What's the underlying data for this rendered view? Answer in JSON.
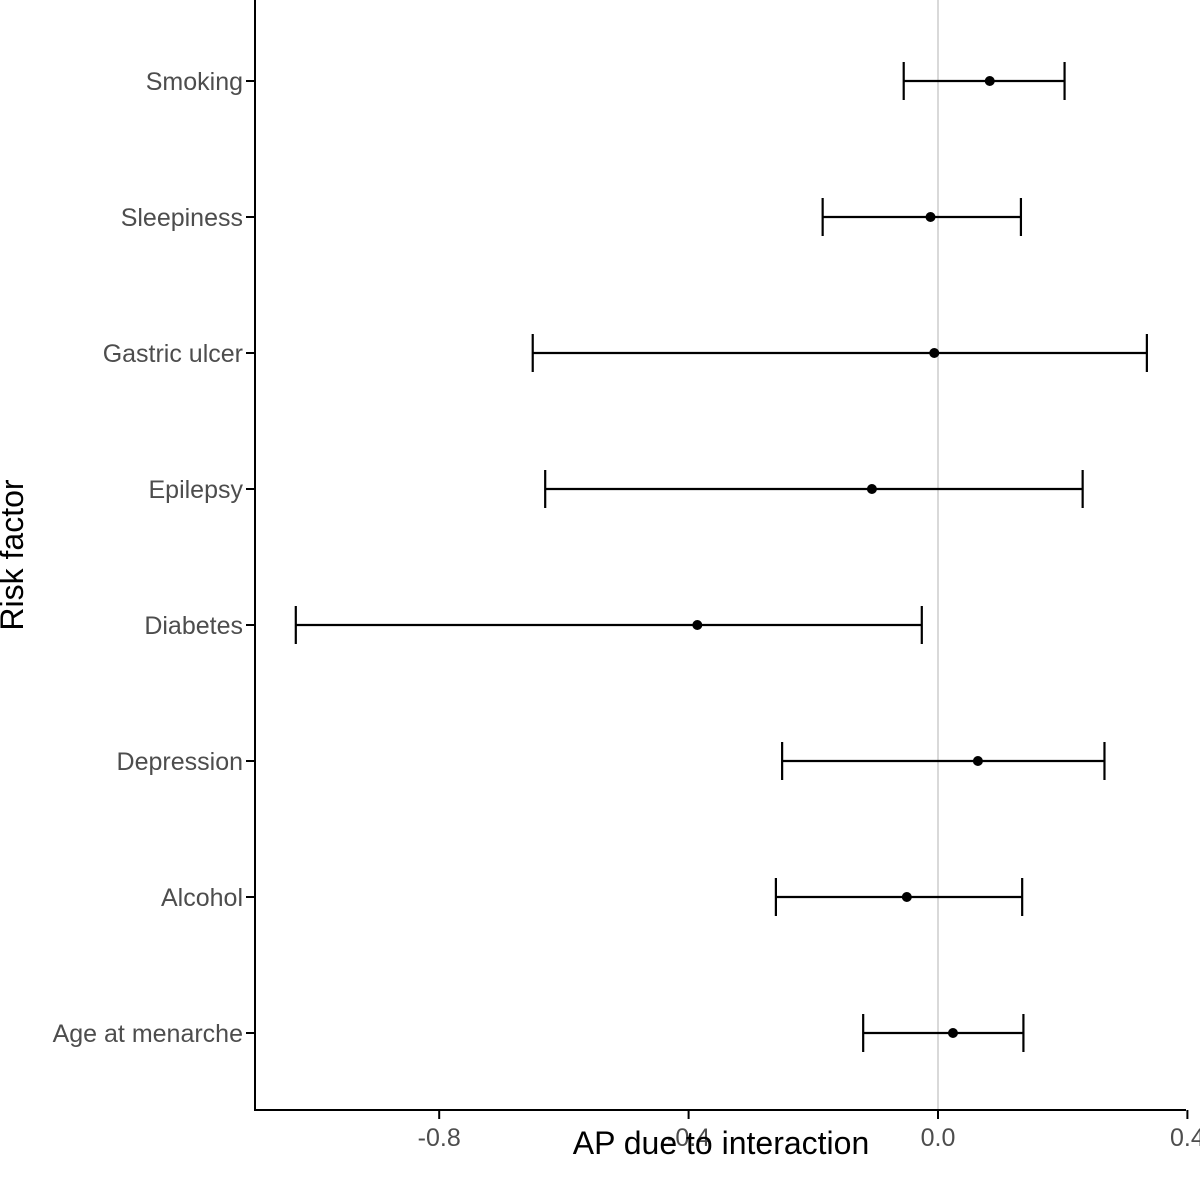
{
  "chart_data": {
    "type": "scatter",
    "subtype": "forest-plot-with-error-bars",
    "title": "",
    "xlabel": "AP due to interaction",
    "ylabel": "Risk factor",
    "xlim": [
      -1.08,
      0.4
    ],
    "xticks": [
      -0.8,
      -0.4,
      0.0,
      0.4
    ],
    "xtick_labels": [
      "-0.8",
      "-0.4",
      "0.0",
      "0.4"
    ],
    "reference_line_x": 0.0,
    "grid": false,
    "legend": "none",
    "categories": [
      "Smoking",
      "Sleepiness",
      "Gastric ulcer",
      "Epilepsy",
      "Diabetes",
      "Depression",
      "Alcohol",
      "Age at menarche"
    ],
    "series": [
      {
        "estimate": [
          0.083,
          -0.012,
          -0.006,
          -0.106,
          -0.386,
          0.064,
          -0.05,
          0.024
        ],
        "lower": [
          -0.055,
          -0.185,
          -0.65,
          -0.63,
          -1.03,
          -0.25,
          -0.26,
          -0.12
        ],
        "upper": [
          0.203,
          0.133,
          0.335,
          0.232,
          -0.026,
          0.267,
          0.135,
          0.137
        ]
      }
    ],
    "colors": {
      "points": "#000000",
      "error_bars": "#000000",
      "reference_line": "#d9d9d9",
      "axis": "#000000",
      "tick_text": "#4d4d4d"
    }
  }
}
